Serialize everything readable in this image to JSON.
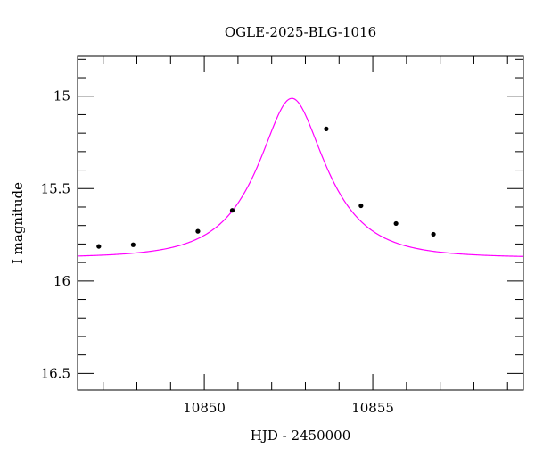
{
  "chart_data": {
    "type": "scatter",
    "title": "OGLE-2025-BLG-1016",
    "xlabel": "HJD - 2450000",
    "ylabel": "I magnitude",
    "xlim": [
      10846.24,
      10859.47
    ],
    "ylim": [
      16.59,
      14.784
    ],
    "y_inverted": true,
    "grid": false,
    "x_major_ticks": [
      10850,
      10855
    ],
    "x_tick_labels": [
      "10850",
      "10855"
    ],
    "x_minor_step": 1,
    "y_major_ticks": [
      15,
      15.5,
      16,
      16.5
    ],
    "y_tick_labels": [
      "15",
      "15.5",
      "16",
      "16.5"
    ],
    "y_minor_step": 0.1,
    "series": [
      {
        "kind": "points",
        "color": "#000000",
        "x": [
          10846.87,
          10847.89,
          10849.81,
          10850.83,
          10853.62,
          10854.65,
          10855.69,
          10856.8
        ],
        "y": [
          15.813,
          15.804,
          15.731,
          15.618,
          15.177,
          15.593,
          15.689,
          15.747
        ],
        "err": [
          0.006,
          0.006,
          0.006,
          0.006,
          0.006,
          0.006,
          0.006,
          0.006
        ]
      },
      {
        "kind": "model-curve",
        "model": "point-lens",
        "color": "#ff00ff",
        "t0": 10852.6,
        "tE": 1.74,
        "u0": 0.492,
        "baseline": 15.874
      }
    ]
  }
}
